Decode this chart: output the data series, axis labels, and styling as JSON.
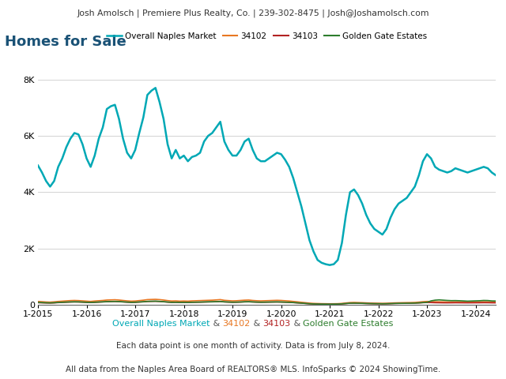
{
  "header_text": "Josh Amolsch | Premiere Plus Realty, Co. | 239-302-8475 | Josh@Joshamolsch.com",
  "title": "Homes for Sale",
  "title_color": "#1a5276",
  "header_bg": "#e0e0e0",
  "colors": {
    "overall": "#00a8b5",
    "zip34102": "#e87722",
    "zip34103": "#b22222",
    "golden_gate": "#2d7d2d"
  },
  "legend_labels": [
    "Overall Naples Market",
    "34102",
    "34103",
    "Golden Gate Estates"
  ],
  "x_tick_labels": [
    "1-2015",
    "1-2016",
    "1-2017",
    "1-2018",
    "1-2019",
    "1-2020",
    "1-2021",
    "1-2022",
    "1-2023",
    "1-2024"
  ],
  "ytick_values": [
    0,
    2000,
    4000,
    6000,
    8000
  ],
  "ylim": [
    0,
    8800
  ],
  "footer_line1_parts": [
    {
      "text": "Overall Naples Market",
      "color": "#00a8b5"
    },
    {
      "text": " & ",
      "color": "#555555"
    },
    {
      "text": "34102",
      "color": "#e87722"
    },
    {
      "text": " & ",
      "color": "#555555"
    },
    {
      "text": "34103",
      "color": "#b22222"
    },
    {
      "text": " & ",
      "color": "#555555"
    },
    {
      "text": "Golden Gate Estates",
      "color": "#2d7d2d"
    }
  ],
  "footer_line2": "Each data point is one month of activity. Data is from July 8, 2024.",
  "footer_line3": "All data from the Naples Area Board of REALTORS® MLS. InfoSparks © 2024 ShowingTime.",
  "overall_data": [
    4950,
    4700,
    4400,
    4200,
    4400,
    4900,
    5200,
    5600,
    5900,
    6100,
    6050,
    5700,
    5200,
    4900,
    5300,
    5900,
    6300,
    6950,
    7050,
    7100,
    6600,
    5900,
    5400,
    5200,
    5500,
    6100,
    6650,
    7450,
    7600,
    7700,
    7200,
    6600,
    5700,
    5200,
    5500,
    5200,
    5300,
    5100,
    5250,
    5300,
    5400,
    5800,
    6000,
    6100,
    6300,
    6500,
    5800,
    5500,
    5300,
    5300,
    5500,
    5800,
    5900,
    5500,
    5200,
    5100,
    5100,
    5200,
    5300,
    5400,
    5350,
    5150,
    4900,
    4500,
    4000,
    3500,
    2900,
    2300,
    1900,
    1600,
    1500,
    1450,
    1420,
    1450,
    1600,
    2200,
    3200,
    4000,
    4100,
    3900,
    3600,
    3200,
    2900,
    2700,
    2600,
    2500,
    2700,
    3100,
    3400,
    3600,
    3700,
    3800,
    4000,
    4200,
    4600,
    5100,
    5350,
    5200,
    4900,
    4800,
    4750,
    4700,
    4750,
    4850,
    4800,
    4750,
    4700,
    4750,
    4800,
    4850,
    4900,
    4850,
    4700,
    4600
  ],
  "zip34102_data": [
    130,
    120,
    110,
    105,
    115,
    130,
    140,
    150,
    160,
    165,
    160,
    150,
    140,
    130,
    145,
    155,
    165,
    180,
    185,
    190,
    180,
    165,
    150,
    140,
    145,
    160,
    175,
    195,
    200,
    205,
    195,
    180,
    160,
    145,
    150,
    140,
    145,
    140,
    150,
    155,
    160,
    165,
    170,
    175,
    185,
    195,
    170,
    160,
    150,
    155,
    165,
    175,
    180,
    165,
    155,
    150,
    155,
    160,
    165,
    170,
    165,
    155,
    145,
    130,
    115,
    100,
    85,
    70,
    60,
    55,
    50,
    48,
    46,
    47,
    50,
    60,
    75,
    90,
    95,
    90,
    85,
    78,
    72,
    68,
    65,
    62,
    65,
    72,
    78,
    82,
    85,
    88,
    90,
    95,
    105,
    120,
    130,
    125,
    118,
    115,
    112,
    110,
    112,
    115,
    114,
    112,
    110,
    112,
    113,
    115,
    118,
    116,
    112,
    110
  ],
  "zip34103_data": [
    85,
    80,
    75,
    72,
    78,
    88,
    95,
    102,
    108,
    112,
    110,
    103,
    95,
    90,
    97,
    105,
    112,
    120,
    124,
    127,
    122,
    112,
    103,
    95,
    98,
    107,
    116,
    128,
    132,
    135,
    128,
    118,
    105,
    95,
    98,
    92,
    95,
    92,
    98,
    101,
    104,
    108,
    112,
    115,
    120,
    126,
    112,
    106,
    100,
    102,
    107,
    114,
    117,
    110,
    104,
    100,
    102,
    105,
    108,
    110,
    107,
    102,
    96,
    88,
    78,
    68,
    57,
    47,
    40,
    37,
    34,
    33,
    32,
    33,
    36,
    43,
    54,
    65,
    68,
    65,
    61,
    56,
    52,
    49,
    47,
    45,
    47,
    52,
    57,
    60,
    62,
    64,
    66,
    69,
    76,
    86,
    93,
    90,
    85,
    83,
    81,
    80,
    81,
    83,
    82,
    81,
    80,
    81,
    82,
    83,
    85,
    84,
    81,
    80
  ],
  "golden_gate_data": [
    95,
    88,
    82,
    78,
    84,
    94,
    100,
    107,
    113,
    116,
    114,
    108,
    100,
    95,
    101,
    109,
    116,
    124,
    128,
    131,
    126,
    116,
    107,
    99,
    102,
    111,
    120,
    132,
    136,
    139,
    132,
    122,
    109,
    99,
    101,
    96,
    98,
    95,
    101,
    104,
    107,
    112,
    116,
    119,
    123,
    130,
    116,
    109,
    103,
    105,
    110,
    118,
    121,
    113,
    107,
    103,
    105,
    108,
    111,
    113,
    110,
    105,
    99,
    91,
    81,
    70,
    59,
    48,
    41,
    38,
    35,
    34,
    33,
    34,
    37,
    45,
    56,
    67,
    70,
    67,
    63,
    58,
    54,
    51,
    49,
    47,
    49,
    54,
    59,
    62,
    64,
    66,
    68,
    72,
    79,
    90,
    98,
    150,
    175,
    185,
    175,
    165,
    158,
    160,
    155,
    148,
    140,
    145,
    150,
    155,
    165,
    162,
    148,
    145
  ]
}
